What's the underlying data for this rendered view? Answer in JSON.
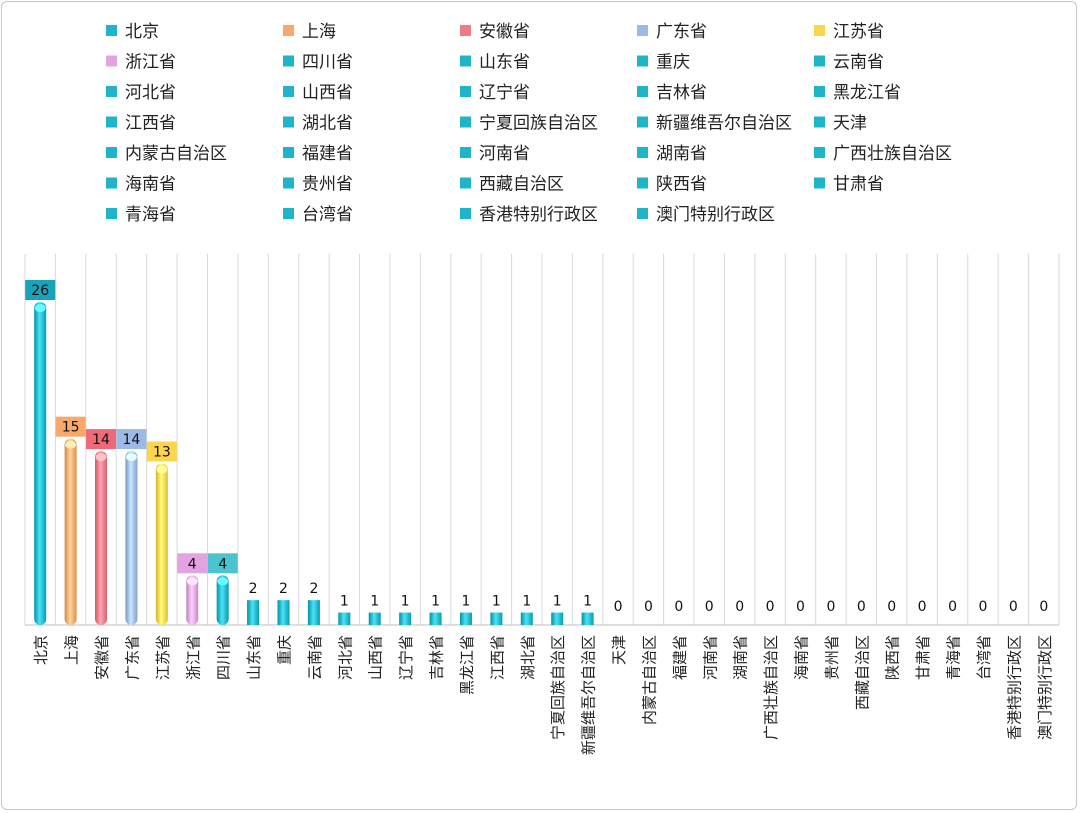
{
  "chart_data": {
    "type": "bar",
    "title": "",
    "xlabel": "",
    "ylabel": "",
    "categories": [
      "北京",
      "上海",
      "安徽省",
      "广东省",
      "江苏省",
      "浙江省",
      "四川省",
      "山东省",
      "重庆",
      "云南省",
      "河北省",
      "山西省",
      "辽宁省",
      "吉林省",
      "黑龙江省",
      "江西省",
      "湖北省",
      "宁夏回族自治区",
      "新疆维吾尔自治区",
      "天津",
      "内蒙古自治区",
      "福建省",
      "河南省",
      "湖南省",
      "广西壮族自治区",
      "海南省",
      "贵州省",
      "西藏自治区",
      "陕西省",
      "甘肃省",
      "青海省",
      "台湾省",
      "香港特别行政区",
      "澳门特别行政区"
    ],
    "values": [
      26,
      15,
      14,
      14,
      13,
      4,
      4,
      2,
      2,
      2,
      1,
      1,
      1,
      1,
      1,
      1,
      1,
      1,
      1,
      0,
      0,
      0,
      0,
      0,
      0,
      0,
      0,
      0,
      0,
      0,
      0,
      0,
      0,
      0
    ],
    "ylim": [
      0,
      26
    ],
    "grid": "vertical",
    "legend": "top",
    "data_labels": true,
    "colors": {
      "北京": "#1fb5c9",
      "上海": "#f7a96b",
      "安徽省": "#f07a85",
      "广东省": "#9db9e6",
      "江苏省": "#fbd54d",
      "浙江省": "#e3a2e0",
      "default": "#1fb5c9"
    },
    "label_bg": {
      "北京": "#1aa3b8",
      "上海": "#f7a96b",
      "安徽省": "#ef6a78",
      "广东省": "#9db9e6",
      "江苏省": "#fbd54d",
      "浙江省": "#e3a2e0",
      "四川省": "#4cc3cf"
    }
  }
}
